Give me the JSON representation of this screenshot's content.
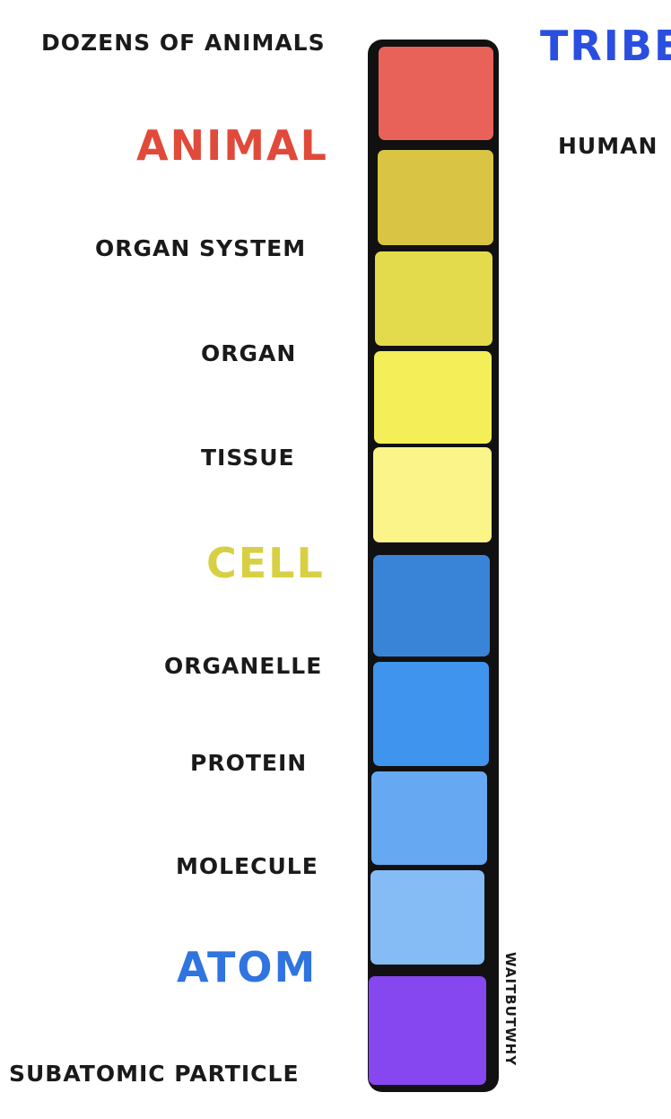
{
  "left_labels": [
    {
      "text": "DOZENS OF ANIMALS",
      "size": "small"
    },
    {
      "text": "ANIMAL",
      "size": "big",
      "color": "#e04a3a"
    },
    {
      "text": "ORGAN SYSTEM",
      "size": "small"
    },
    {
      "text": "ORGAN",
      "size": "small"
    },
    {
      "text": "TISSUE",
      "size": "small"
    },
    {
      "text": "CELL",
      "size": "big",
      "color": "#d8d044"
    },
    {
      "text": "ORGANELLE",
      "size": "small"
    },
    {
      "text": "PROTEIN",
      "size": "small"
    },
    {
      "text": "MOLECULE",
      "size": "small"
    },
    {
      "text": "ATOM",
      "size": "big",
      "color": "#2f74e0"
    },
    {
      "text": "SUBATOMIC PARTICLE",
      "size": "small"
    }
  ],
  "right_labels": [
    {
      "text": "TRIBE",
      "size": "big",
      "color": "#2a4fe0"
    },
    {
      "text": "HUMAN",
      "size": "small"
    }
  ],
  "signature": "WAITBUTWHY",
  "blocks": [
    {
      "color": "#e8625a"
    },
    {
      "color": "#d9c444"
    },
    {
      "color": "#e3db4c"
    },
    {
      "color": "#f4ee58"
    },
    {
      "color": "#fbf488"
    },
    {
      "color": "#3a84d8"
    },
    {
      "color": "#3f95ee"
    },
    {
      "color": "#66a9f2"
    },
    {
      "color": "#86bcf6"
    },
    {
      "color": "#8646f0"
    }
  ],
  "colors": {
    "outline": "#111111",
    "text": "#1a1a1a"
  }
}
